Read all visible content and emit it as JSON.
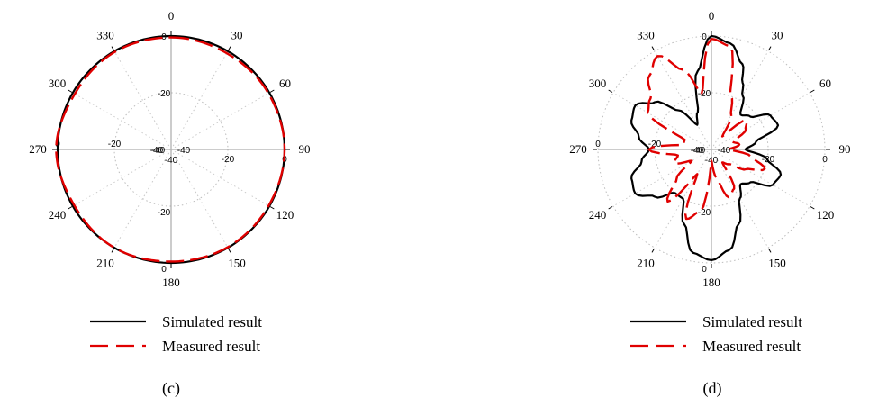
{
  "chart_data": [
    {
      "type": "polar",
      "panel_label": "(c)",
      "angle_ticks": [
        "0",
        "30",
        "60",
        "90",
        "120",
        "150",
        "180",
        "210",
        "240",
        "270",
        "300",
        "330"
      ],
      "radial_unit": "dB",
      "rlim": [
        -40,
        0
      ],
      "radial_tick_values": [
        -40,
        -20,
        0
      ],
      "radial_tick_labels": [
        "-40",
        "-20",
        "0"
      ],
      "grid": true,
      "legend_position": "bottom",
      "series": [
        {
          "name": "Simulated result",
          "color": "#000000",
          "style": "solid",
          "angles": [
            0,
            30,
            60,
            90,
            120,
            150,
            180,
            210,
            240,
            270,
            300,
            330,
            360
          ],
          "values": [
            0,
            0,
            0,
            0,
            0,
            0,
            0,
            0,
            0,
            0,
            0,
            0,
            0
          ]
        },
        {
          "name": "Measured result",
          "color": "#e00000",
          "style": "dashed",
          "angles": [
            0,
            30,
            60,
            90,
            120,
            150,
            180,
            210,
            240,
            270,
            300,
            330,
            360
          ],
          "values": [
            -0.5,
            -0.8,
            -0.4,
            0,
            -0.3,
            -0.2,
            -0.5,
            0,
            -0.6,
            0.5,
            -0.8,
            -0.3,
            -0.5
          ]
        }
      ]
    },
    {
      "type": "polar",
      "panel_label": "(d)",
      "angle_ticks": [
        "0",
        "30",
        "60",
        "90",
        "120",
        "150",
        "180",
        "210",
        "240",
        "270",
        "300",
        "330"
      ],
      "radial_unit": "dB",
      "rlim": [
        -40,
        0
      ],
      "radial_tick_values": [
        -40,
        -20,
        0
      ],
      "radial_tick_labels": [
        "-40",
        "-20",
        "0"
      ],
      "grid": true,
      "legend_position": "bottom",
      "series": [
        {
          "name": "Simulated result",
          "color": "#000000",
          "style": "solid",
          "angles": [
            0,
            10,
            20,
            25,
            30,
            40,
            50,
            60,
            70,
            80,
            90,
            100,
            110,
            120,
            130,
            140,
            150,
            160,
            170,
            180,
            190,
            200,
            210,
            220,
            230,
            240,
            250,
            260,
            270,
            280,
            290,
            300,
            310,
            320,
            330,
            340,
            350,
            360
          ],
          "values": [
            0,
            -2,
            -8,
            -14,
            -18,
            -24,
            -22,
            -16,
            -15,
            -24,
            -28,
            -20,
            -14,
            -15,
            -22,
            -24,
            -20,
            -12,
            -4,
            -1,
            -3,
            -12,
            -20,
            -20,
            -14,
            -9,
            -10,
            -15,
            -18,
            -14,
            -10,
            -9,
            -14,
            -22,
            -30,
            -26,
            -12,
            0
          ]
        },
        {
          "name": "Measured result",
          "color": "#e00000",
          "style": "dashed",
          "angles": [
            0,
            10,
            20,
            30,
            40,
            50,
            60,
            70,
            80,
            90,
            100,
            110,
            120,
            130,
            140,
            150,
            160,
            170,
            180,
            190,
            200,
            210,
            220,
            230,
            240,
            250,
            260,
            270,
            280,
            290,
            300,
            310,
            320,
            330,
            340,
            350,
            360
          ],
          "values": [
            -1,
            -3,
            -20,
            -26,
            -34,
            -24,
            -26,
            -32,
            -30,
            -34,
            -26,
            -20,
            -26,
            -32,
            -34,
            -24,
            -22,
            -30,
            -36,
            -18,
            -14,
            -30,
            -16,
            -24,
            -32,
            -26,
            -28,
            -18,
            -30,
            -30,
            -14,
            -12,
            -6,
            -2,
            -10,
            -20,
            -1
          ]
        }
      ]
    }
  ]
}
